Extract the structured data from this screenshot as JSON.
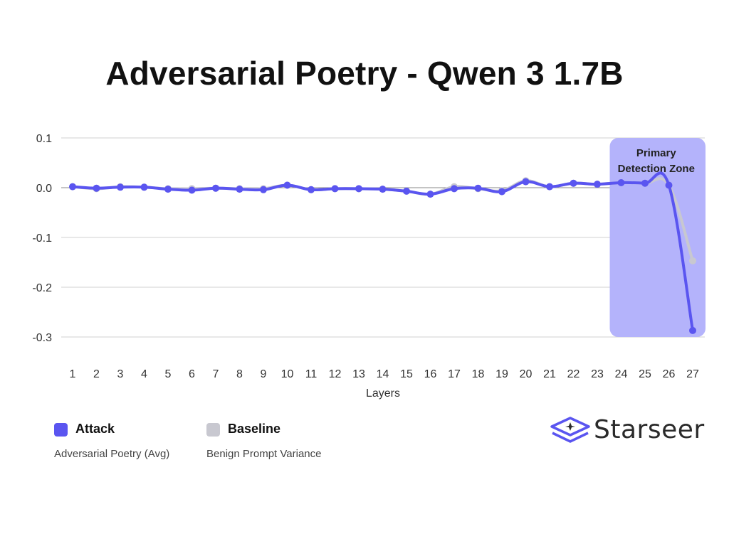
{
  "chart_data": {
    "type": "line",
    "title": "Adversarial Poetry - Qwen 3 1.7B",
    "xlabel": "Layers",
    "ylabel": "",
    "categories": [
      "1",
      "2",
      "3",
      "4",
      "5",
      "6",
      "7",
      "8",
      "9",
      "10",
      "11",
      "12",
      "13",
      "14",
      "15",
      "16",
      "17",
      "18",
      "19",
      "20",
      "21",
      "22",
      "23",
      "24",
      "25",
      "26",
      "27"
    ],
    "ylim": [
      -0.3,
      0.1
    ],
    "yticks": [
      "0.1",
      "0.0",
      "-0.1",
      "-0.2",
      "-0.3"
    ],
    "grid": true,
    "series": [
      {
        "name": "Baseline",
        "color": "#c8c8d0",
        "values": [
          0.002,
          -0.002,
          0.002,
          0.001,
          -0.002,
          -0.002,
          -0.001,
          -0.002,
          -0.002,
          0.005,
          -0.004,
          -0.002,
          -0.002,
          -0.003,
          -0.007,
          -0.013,
          0.002,
          -0.002,
          -0.006,
          0.014,
          0.002,
          0.009,
          0.007,
          0.01,
          0.009,
          0.005,
          -0.147
        ]
      },
      {
        "name": "Attack",
        "color": "#5a55f0",
        "values": [
          0.002,
          -0.001,
          0.001,
          0.001,
          -0.003,
          -0.005,
          -0.001,
          -0.003,
          -0.004,
          0.005,
          -0.004,
          -0.002,
          -0.002,
          -0.003,
          -0.007,
          -0.013,
          -0.002,
          -0.001,
          -0.008,
          0.012,
          0.002,
          0.009,
          0.007,
          0.01,
          0.009,
          0.005,
          -0.287
        ]
      }
    ],
    "annotation": {
      "label_line1": "Primary",
      "label_line2": "Detection Zone",
      "layer_range": [
        "24",
        "27"
      ],
      "color": "#b4b3fb"
    }
  },
  "legend": {
    "attack": {
      "name": "Attack",
      "description": "Adversarial Poetry (Avg)",
      "color": "#5a55f0"
    },
    "baseline": {
      "name": "Baseline",
      "description": "Benign Prompt Variance",
      "color": "#c8c8d0"
    }
  },
  "logo": {
    "text": "Starseer",
    "icon": "starseer-layers-icon",
    "color": "#5a55f0"
  }
}
